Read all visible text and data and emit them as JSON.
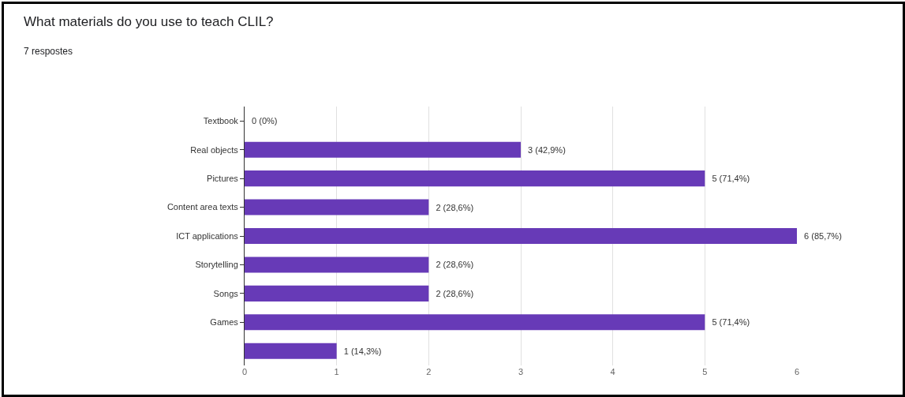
{
  "chart_data": {
    "type": "bar",
    "orientation": "horizontal",
    "title": "What materials do you use to teach CLIL?",
    "subtitle": "7 respostes",
    "categories": [
      "Textbook",
      "Real objects",
      "Pictures",
      "Content area texts",
      "ICT applications",
      "Storytelling",
      "Songs",
      "Games",
      null
    ],
    "values": [
      0,
      3,
      5,
      2,
      6,
      2,
      2,
      5,
      1
    ],
    "value_labels": [
      "0 (0%)",
      "3 (42,9%)",
      "5 (71,4%)",
      "2 (28,6%)",
      "6 (85,7%)",
      "2 (28,6%)",
      "2 (28,6%)",
      "5 (71,4%)",
      "1 (14,3%)"
    ],
    "color": "#673ab7",
    "xlim": [
      0,
      6
    ],
    "xticks": [
      0,
      1,
      2,
      3,
      4,
      5,
      6
    ],
    "grid": "x"
  }
}
